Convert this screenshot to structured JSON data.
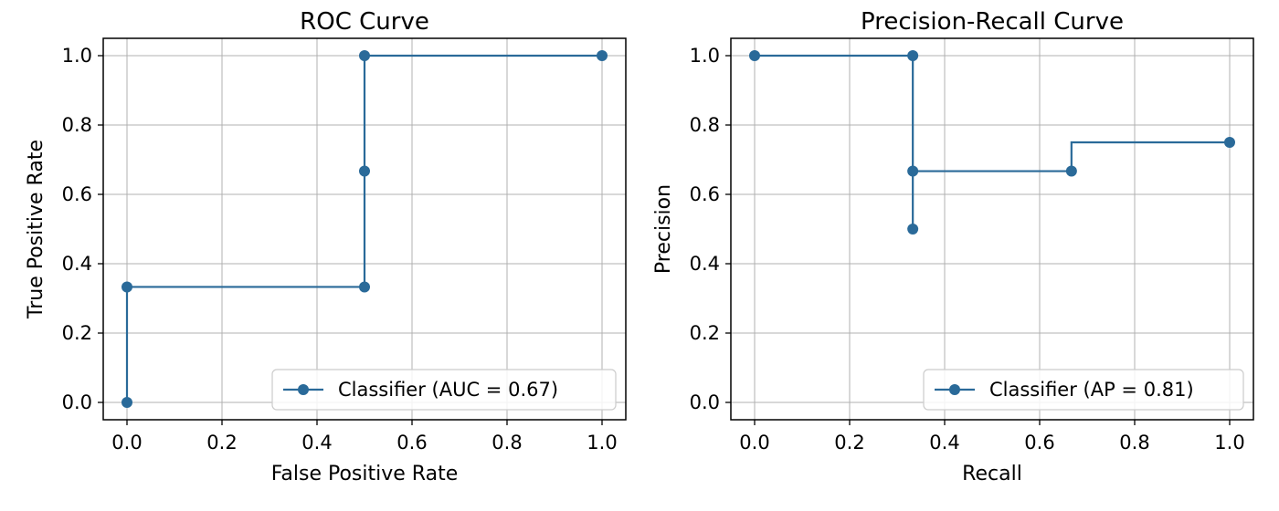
{
  "chart_data": [
    {
      "type": "line",
      "drawstyle": "steps-post",
      "title": "ROC Curve",
      "xlabel": "False Positive Rate",
      "ylabel": "True Positive Rate",
      "xlim": [
        -0.05,
        1.05
      ],
      "ylim": [
        -0.05,
        1.05
      ],
      "xticks": [
        "0.0",
        "0.2",
        "0.4",
        "0.6",
        "0.8",
        "1.0"
      ],
      "yticks": [
        "0.0",
        "0.2",
        "0.4",
        "0.6",
        "0.8",
        "1.0"
      ],
      "grid": true,
      "legend_loc": "lower-right",
      "series": [
        {
          "name": "Classifier (AUC = 0.67)",
          "color": "#2a6a99",
          "x": [
            0.0,
            0.0,
            0.5,
            0.5,
            0.5,
            1.0
          ],
          "y": [
            0.0,
            0.333,
            0.333,
            0.667,
            1.0,
            1.0
          ]
        }
      ]
    },
    {
      "type": "line",
      "drawstyle": "steps-post",
      "title": "Precision-Recall Curve",
      "xlabel": "Recall",
      "ylabel": "Precision",
      "xlim": [
        -0.05,
        1.05
      ],
      "ylim": [
        -0.05,
        1.05
      ],
      "xticks": [
        "0.0",
        "0.2",
        "0.4",
        "0.6",
        "0.8",
        "1.0"
      ],
      "yticks": [
        "0.0",
        "0.2",
        "0.4",
        "0.6",
        "0.8",
        "1.0"
      ],
      "grid": true,
      "legend_loc": "lower-right",
      "series": [
        {
          "name": "Classifier (AP = 0.81)",
          "color": "#2a6a99",
          "x": [
            1.0,
            0.667,
            0.333,
            0.333,
            0.333,
            0.0
          ],
          "y": [
            0.75,
            0.667,
            0.5,
            0.667,
            1.0,
            1.0
          ]
        }
      ]
    }
  ]
}
